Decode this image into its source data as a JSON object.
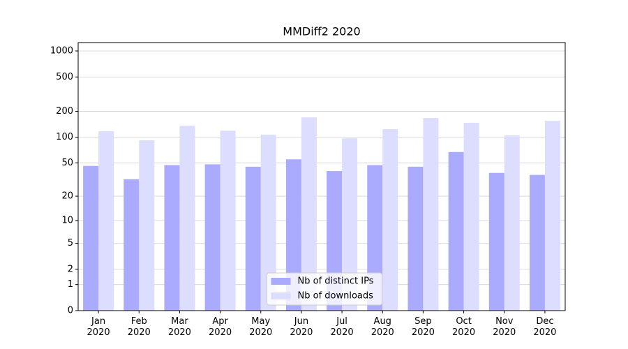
{
  "chart_data": {
    "type": "bar",
    "title": "MMDiff2 2020",
    "categories": [
      "Jan\n2020",
      "Feb\n2020",
      "Mar\n2020",
      "Apr\n2020",
      "May\n2020",
      "Jun\n2020",
      "Jul\n2020",
      "Aug\n2020",
      "Sep\n2020",
      "Oct\n2020",
      "Nov\n2020",
      "Dec\n2020"
    ],
    "series": [
      {
        "name": "Nb of distinct IPs",
        "color": "#aaaaff",
        "values": [
          46,
          32,
          47,
          48,
          45,
          55,
          40,
          47,
          45,
          67,
          38,
          36
        ]
      },
      {
        "name": "Nb of downloads",
        "color": "#ddddff",
        "values": [
          117,
          92,
          136,
          119,
          107,
          170,
          97,
          124,
          167,
          147,
          105,
          155
        ]
      }
    ],
    "yscale": "log1p",
    "ylim": [
      0,
      1250
    ],
    "yticks": [
      0,
      1,
      2,
      5,
      10,
      20,
      50,
      100,
      200,
      500,
      1000
    ],
    "grid": true,
    "legend": "lower center"
  }
}
